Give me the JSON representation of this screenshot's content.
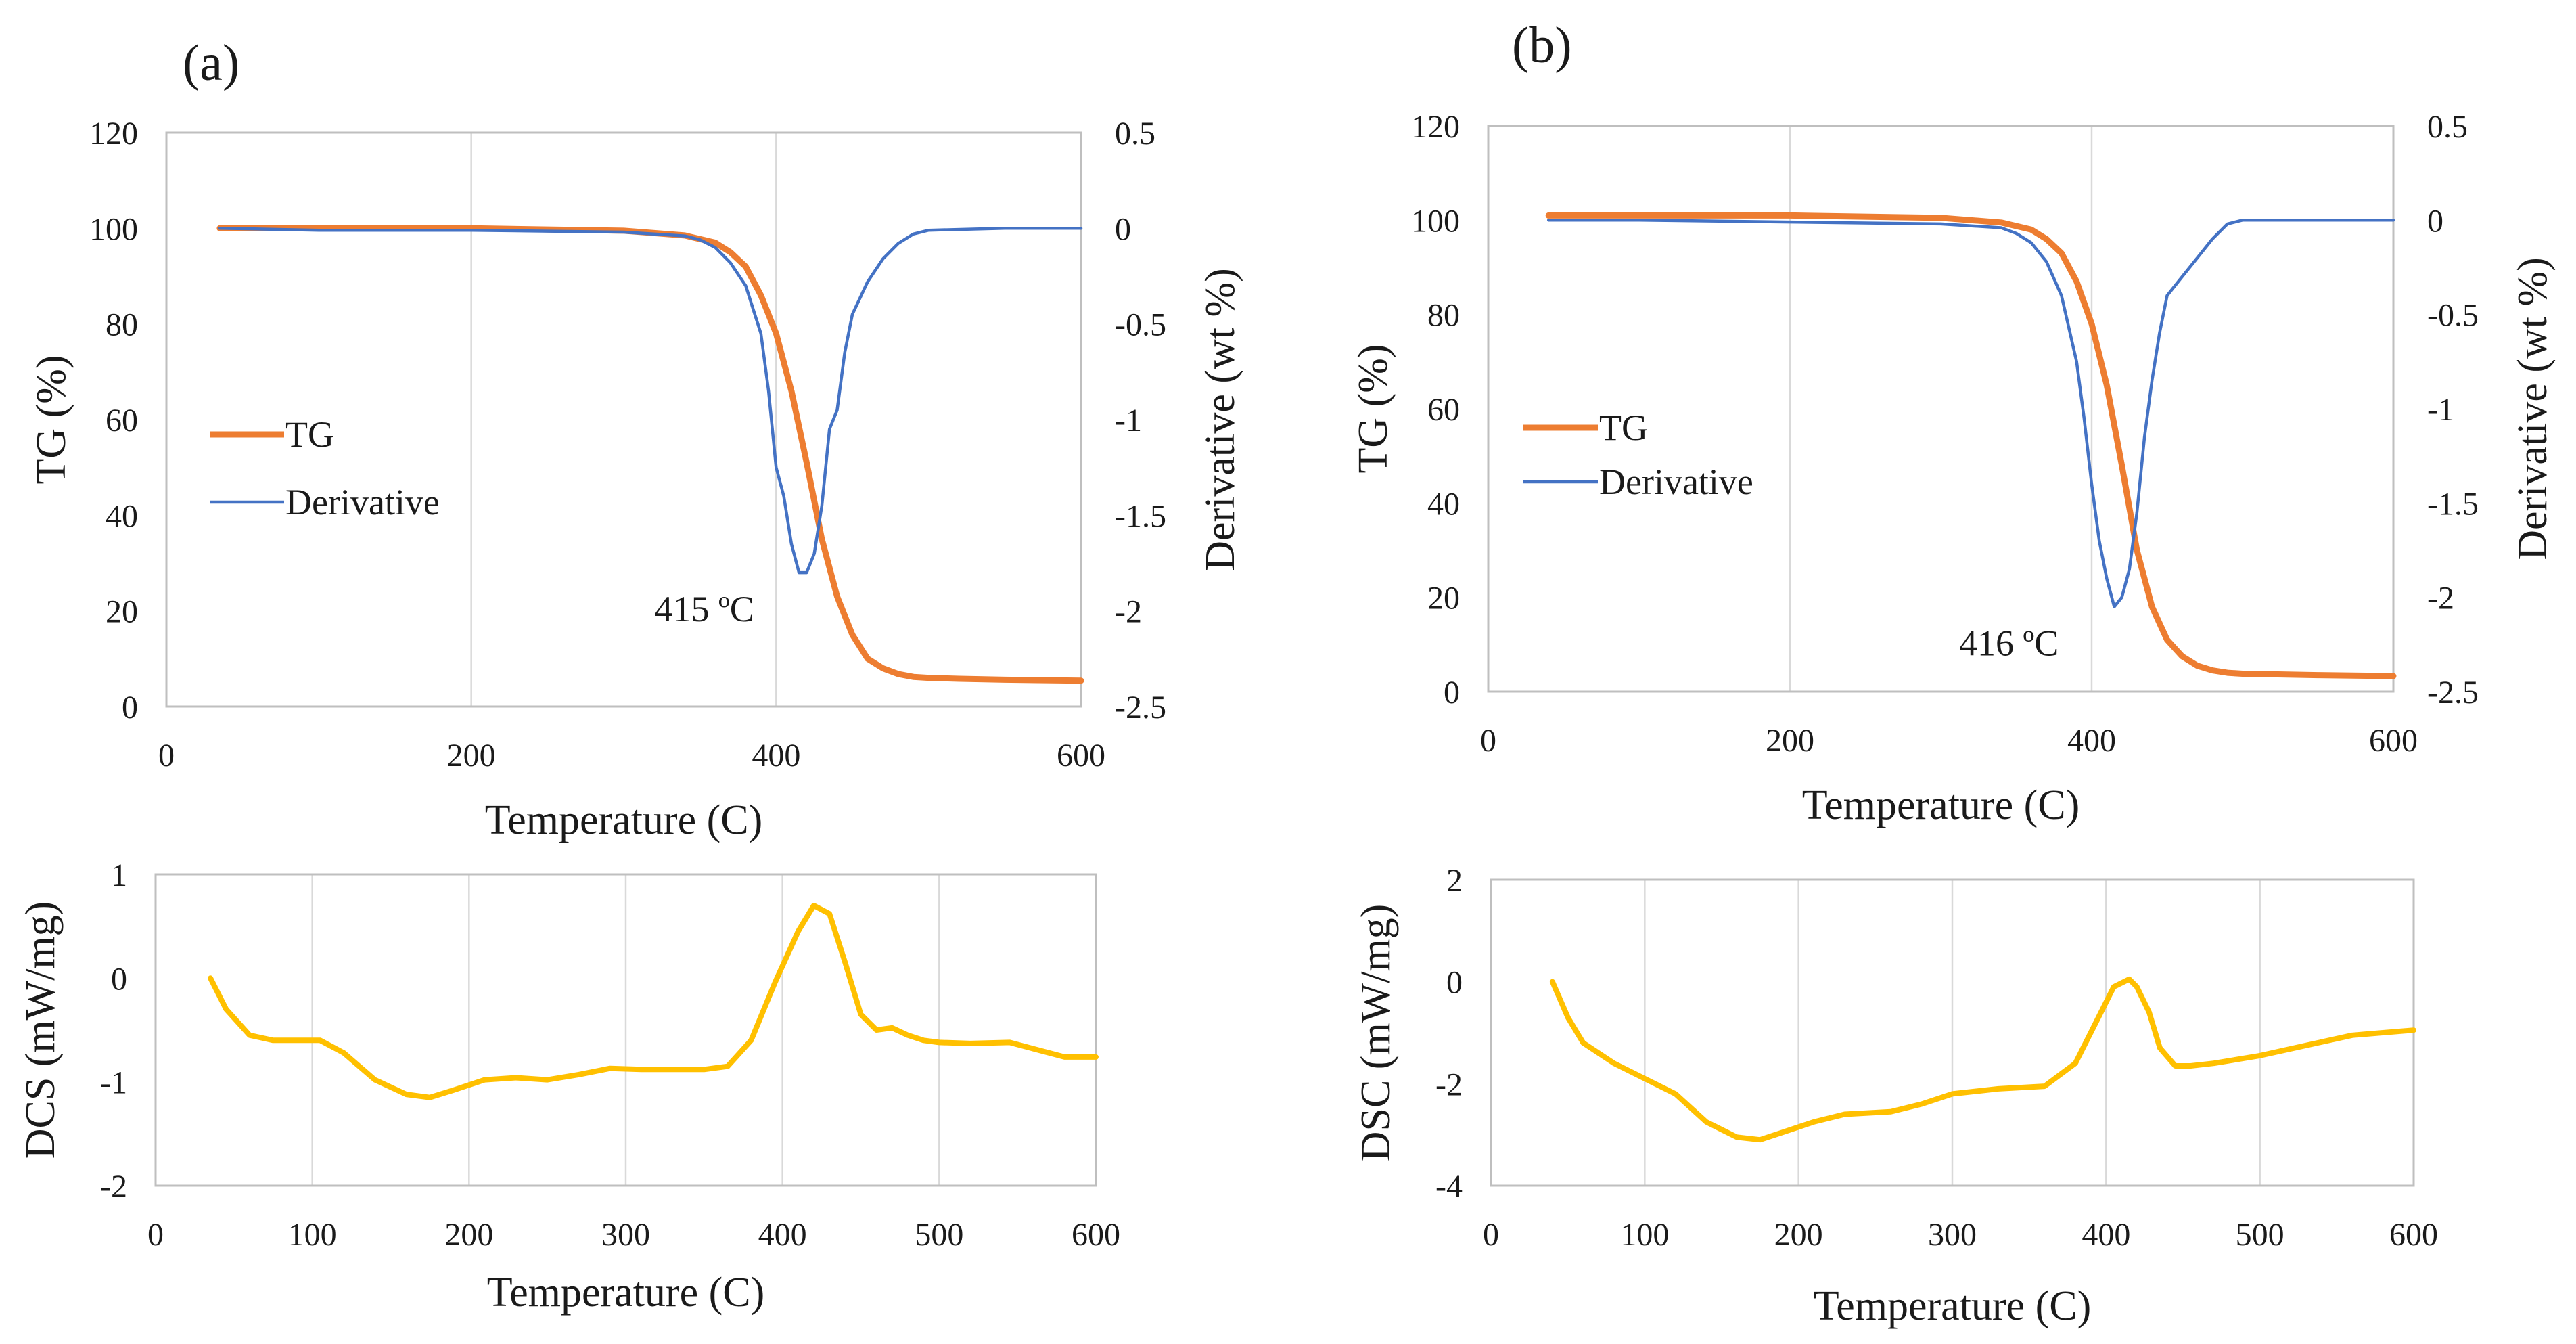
{
  "panel_labels": [
    "(a)",
    "(b)"
  ],
  "colors": {
    "tg": "#ED7D31",
    "derivative": "#4472C4",
    "dsc": "#FFC000",
    "grid": "#D9D9D9"
  },
  "chart_data": [
    {
      "id": "a-tg",
      "type": "line",
      "panel": "(a)",
      "xlabel": "Temperature (C)",
      "ylabel": "TG (%)",
      "y2label": "Derivative (wt %)",
      "xlim": [
        0,
        600
      ],
      "ylim": [
        0,
        120
      ],
      "y2lim": [
        -2.5,
        0.5
      ],
      "x_ticks": [
        0,
        200,
        400,
        600
      ],
      "y_ticks": [
        0,
        20,
        40,
        60,
        80,
        100,
        120
      ],
      "y2_ticks": [
        0.5,
        0,
        -0.5,
        -1,
        -1.5,
        -2,
        -2.5
      ],
      "grid": "vertical",
      "legend_position": "left",
      "annotation": {
        "text": "415 ºC",
        "x": 415,
        "y2": -1.8
      },
      "series": [
        {
          "name": "TG",
          "axis": "left",
          "x": [
            35,
            100,
            200,
            300,
            340,
            360,
            370,
            380,
            390,
            400,
            410,
            420,
            430,
            440,
            450,
            460,
            470,
            480,
            490,
            500,
            520,
            550,
            600
          ],
          "y": [
            100,
            100,
            100,
            99.5,
            98.5,
            97,
            95,
            92,
            86,
            78,
            66,
            51,
            35,
            23,
            15,
            10,
            8,
            6.8,
            6.2,
            6,
            5.8,
            5.6,
            5.4
          ]
        },
        {
          "name": "Derivative",
          "axis": "right",
          "x": [
            35,
            100,
            200,
            300,
            340,
            350,
            360,
            370,
            380,
            390,
            395,
            400,
            405,
            410,
            415,
            420,
            425,
            430,
            435,
            440,
            445,
            450,
            460,
            470,
            480,
            490,
            500,
            550,
            600
          ],
          "y": [
            0,
            -0.01,
            -0.01,
            -0.02,
            -0.04,
            -0.06,
            -0.1,
            -0.18,
            -0.3,
            -0.55,
            -0.85,
            -1.25,
            -1.4,
            -1.65,
            -1.8,
            -1.8,
            -1.7,
            -1.45,
            -1.05,
            -0.95,
            -0.65,
            -0.45,
            -0.28,
            -0.16,
            -0.08,
            -0.03,
            -0.01,
            0,
            0
          ]
        }
      ]
    },
    {
      "id": "b-tg",
      "type": "line",
      "panel": "(b)",
      "xlabel": "Temperature (C)",
      "ylabel": "TG (%)",
      "y2label": "Derivative (wt %)",
      "xlim": [
        0,
        600
      ],
      "ylim": [
        0,
        120
      ],
      "y2lim": [
        -2.5,
        0.5
      ],
      "x_ticks": [
        0,
        200,
        400,
        600
      ],
      "y_ticks": [
        0,
        20,
        40,
        60,
        80,
        100,
        120
      ],
      "y2_ticks": [
        0.5,
        0,
        -0.5,
        -1,
        -1.5,
        -2,
        -2.5
      ],
      "grid": "vertical",
      "legend_position": "left",
      "annotation": {
        "text": "416 ºC",
        "x": 416,
        "y2": -2.05
      },
      "series": [
        {
          "name": "TG",
          "axis": "left",
          "x": [
            40,
            100,
            200,
            300,
            340,
            360,
            370,
            380,
            390,
            400,
            410,
            420,
            430,
            440,
            450,
            460,
            470,
            480,
            490,
            500,
            550,
            600
          ],
          "y": [
            101,
            101,
            101,
            100.5,
            99.5,
            98,
            96,
            93,
            87,
            78,
            65,
            48,
            30,
            18,
            11,
            7.5,
            5.5,
            4.5,
            4,
            3.8,
            3.5,
            3.3
          ]
        },
        {
          "name": "Derivative",
          "axis": "right",
          "x": [
            40,
            100,
            200,
            300,
            340,
            350,
            360,
            370,
            380,
            390,
            395,
            400,
            405,
            410,
            415,
            420,
            425,
            430,
            435,
            440,
            445,
            450,
            460,
            470,
            480,
            490,
            500,
            550,
            600
          ],
          "y": [
            0,
            0,
            -0.01,
            -0.02,
            -0.04,
            -0.07,
            -0.12,
            -0.22,
            -0.4,
            -0.75,
            -1.05,
            -1.4,
            -1.7,
            -1.9,
            -2.05,
            -2.0,
            -1.85,
            -1.55,
            -1.15,
            -0.85,
            -0.6,
            -0.4,
            -0.3,
            -0.2,
            -0.1,
            -0.02,
            0,
            0,
            0
          ]
        }
      ]
    },
    {
      "id": "a-dsc",
      "type": "line",
      "panel": "(a)",
      "xlabel": "Temperature (C)",
      "ylabel": "DCS (mW/mg)",
      "xlim": [
        0,
        600
      ],
      "ylim": [
        -2,
        1
      ],
      "x_ticks": [
        0,
        100,
        200,
        300,
        400,
        500,
        600
      ],
      "y_ticks": [
        1,
        0,
        -1,
        -2
      ],
      "grid": "vertical",
      "series": [
        {
          "name": "DSC",
          "x": [
            35,
            45,
            60,
            75,
            90,
            105,
            120,
            140,
            160,
            175,
            190,
            210,
            230,
            250,
            270,
            290,
            310,
            330,
            350,
            365,
            380,
            395,
            410,
            420,
            430,
            440,
            450,
            460,
            470,
            480,
            490,
            500,
            520,
            545,
            560,
            580,
            600
          ],
          "y": [
            0,
            -0.3,
            -0.55,
            -0.6,
            -0.6,
            -0.6,
            -0.72,
            -0.98,
            -1.12,
            -1.15,
            -1.08,
            -0.98,
            -0.96,
            -0.98,
            -0.93,
            -0.87,
            -0.88,
            -0.88,
            -0.88,
            -0.85,
            -0.6,
            -0.05,
            0.45,
            0.7,
            0.62,
            0.15,
            -0.35,
            -0.5,
            -0.48,
            -0.55,
            -0.6,
            -0.62,
            -0.63,
            -0.62,
            -0.68,
            -0.76,
            -0.76
          ]
        }
      ]
    },
    {
      "id": "b-dsc",
      "type": "line",
      "panel": "(b)",
      "xlabel": "Temperature (C)",
      "ylabel": "DSC (mW/mg)",
      "xlim": [
        0,
        600
      ],
      "ylim": [
        -4,
        2
      ],
      "x_ticks": [
        0,
        100,
        200,
        300,
        400,
        500,
        600
      ],
      "y_ticks": [
        2,
        0,
        -2,
        -4
      ],
      "grid": "vertical",
      "series": [
        {
          "name": "DSC",
          "x": [
            40,
            50,
            60,
            80,
            100,
            120,
            140,
            160,
            175,
            190,
            210,
            230,
            260,
            280,
            300,
            330,
            360,
            380,
            395,
            405,
            415,
            420,
            428,
            435,
            445,
            455,
            470,
            500,
            530,
            560,
            600
          ],
          "y": [
            0,
            -0.7,
            -1.2,
            -1.6,
            -1.9,
            -2.2,
            -2.75,
            -3.05,
            -3.1,
            -2.95,
            -2.75,
            -2.6,
            -2.55,
            -2.4,
            -2.2,
            -2.1,
            -2.05,
            -1.6,
            -0.7,
            -0.1,
            0.05,
            -0.1,
            -0.6,
            -1.3,
            -1.65,
            -1.65,
            -1.6,
            -1.45,
            -1.25,
            -1.05,
            -0.95
          ]
        }
      ]
    }
  ]
}
